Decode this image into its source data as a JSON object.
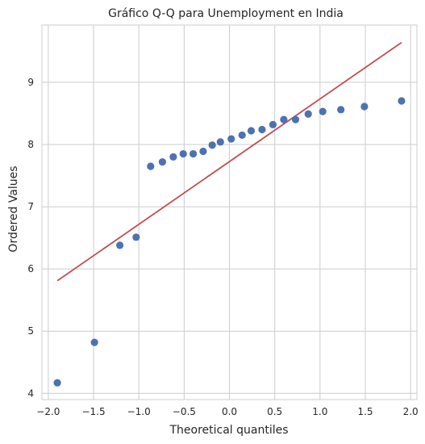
{
  "chart_data": {
    "type": "scatter",
    "title": "Gráfico Q-Q para Unemployment en India",
    "xlabel": "Theoretical quantiles",
    "ylabel": "Ordered Values",
    "xlim": [
      -2.07,
      2.07
    ],
    "ylim": [
      3.9,
      9.92
    ],
    "xticks": [
      -2.0,
      -1.5,
      -1.0,
      -0.5,
      0.0,
      0.5,
      1.0,
      1.5,
      2.0
    ],
    "xtick_labels": [
      "−2.0",
      "−1.5",
      "−1.0",
      "−0.5",
      "0.0",
      "0.5",
      "1.0",
      "1.5",
      "2.0"
    ],
    "yticks": [
      4,
      5,
      6,
      7,
      8,
      9
    ],
    "ytick_labels": [
      "4",
      "5",
      "6",
      "7",
      "8",
      "9"
    ],
    "grid": true,
    "series": [
      {
        "type": "scatter",
        "color": "#4c72b0",
        "x": [
          -1.9,
          -1.49,
          -1.21,
          -1.03,
          -0.87,
          -0.74,
          -0.62,
          -0.51,
          -0.4,
          -0.29,
          -0.19,
          -0.1,
          0.02,
          0.14,
          0.24,
          0.36,
          0.48,
          0.6,
          0.73,
          0.87,
          1.03,
          1.23,
          1.49,
          1.9
        ],
        "y": [
          4.17,
          4.82,
          6.38,
          6.51,
          7.65,
          7.72,
          7.8,
          7.85,
          7.85,
          7.89,
          7.99,
          8.04,
          8.09,
          8.15,
          8.22,
          8.24,
          8.32,
          8.4,
          8.4,
          8.49,
          8.53,
          8.56,
          8.61,
          8.7
        ]
      },
      {
        "type": "line",
        "color": "#c44e52",
        "x": [
          -1.9,
          1.9
        ],
        "y": [
          5.81,
          9.64
        ]
      }
    ]
  }
}
